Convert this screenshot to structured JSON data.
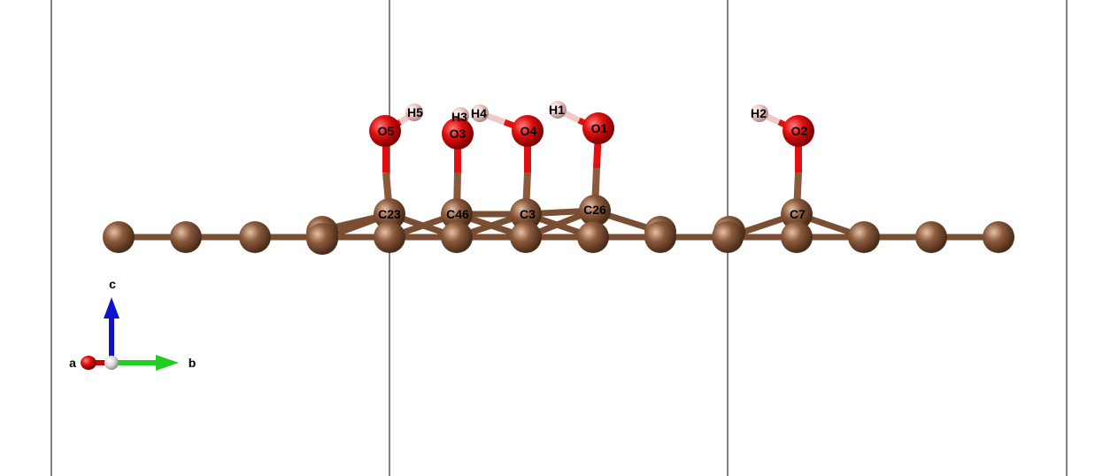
{
  "colors": {
    "background": "#ffffff",
    "cell_line": "#000000",
    "carbon": "#8B5A3C",
    "oxygen": "#E01010",
    "hydrogen": "#F0C8C8",
    "axis_a": "#D00000",
    "axis_b": "#22CC22",
    "axis_c": "#1010D0"
  },
  "axes": {
    "a_label": "a",
    "b_label": "b",
    "c_label": "c"
  },
  "labels": {
    "C23": "C23",
    "C46": "C46",
    "C3": "C3",
    "C26": "C26",
    "C7": "C7",
    "O5": "O5",
    "O3": "O3",
    "O4": "O4",
    "O1": "O1",
    "O2": "O2",
    "H5": "H5",
    "H3": "H3",
    "H4": "H4",
    "H1": "H1",
    "H2": "H2"
  }
}
